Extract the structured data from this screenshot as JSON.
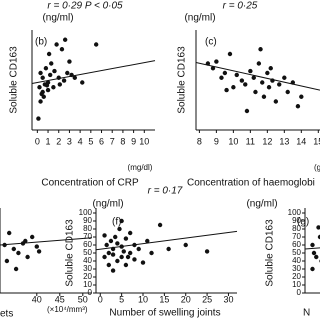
{
  "chart_data": [
    {
      "type": "scatter",
      "title": "r = 0·29 P < 0·05",
      "panel": "(b)",
      "y_unit": "(ng/ml)",
      "ylabel": "Soluble CD163",
      "xlabel": "Concentration of CRP",
      "x_unit": "(mg/dl)",
      "xlim": [
        -0.5,
        11
      ],
      "ylim": [
        0,
        100
      ],
      "xticks": [
        0,
        1,
        2,
        3,
        4,
        5,
        6,
        7,
        8,
        9,
        10
      ],
      "x": [
        0.2,
        0.3,
        0.5,
        0.5,
        0.7,
        0.8,
        1,
        1,
        1.2,
        1.3,
        1.5,
        1.6,
        1.8,
        2,
        2.1,
        2.3,
        2.5,
        2.8,
        3,
        3.2,
        3.5,
        0.1,
        0.4,
        0.9,
        1.1,
        2.6,
        4.2,
        5.5,
        0.3,
        0.6
      ],
      "y": [
        45,
        30,
        55,
        40,
        48,
        65,
        50,
        42,
        58,
        70,
        45,
        62,
        90,
        55,
        48,
        85,
        52,
        60,
        72,
        58,
        55,
        12,
        38,
        47,
        80,
        95,
        50,
        90,
        60,
        35
      ],
      "fit": {
        "x": [
          -0.5,
          11
        ],
        "y": [
          49,
          73
        ]
      },
      "color": "#111111"
    },
    {
      "type": "scatter",
      "title": "r = 0·25",
      "panel": "(c)",
      "y_unit": "(ng/ml)",
      "ylabel": "Soluble CD163",
      "xlabel": "Concentration of haemoglobi",
      "x_unit": "(g",
      "xlim": [
        7.8,
        15.1
      ],
      "ylim": [
        0,
        100
      ],
      "xticks": [
        8,
        9,
        10,
        11,
        12,
        13,
        14,
        15
      ],
      "x": [
        8.5,
        8.8,
        9,
        9.3,
        9.5,
        9.8,
        10,
        10.2,
        10.5,
        10.7,
        11,
        11.2,
        11.3,
        11.5,
        11.7,
        11.8,
        12,
        12.1,
        12.3,
        12.5,
        12.7,
        13,
        13.2,
        13.5,
        13.8,
        14,
        10.8,
        11.6,
        12.2,
        9.6
      ],
      "y": [
        70,
        65,
        72,
        55,
        60,
        80,
        45,
        58,
        52,
        48,
        62,
        55,
        40,
        70,
        50,
        35,
        60,
        45,
        52,
        30,
        48,
        55,
        40,
        50,
        25,
        35,
        20,
        85,
        65,
        42
      ],
      "fit": {
        "x": [
          7.8,
          15.1
        ],
        "y": [
          71,
          42
        ]
      },
      "color": "#111111"
    },
    {
      "type": "scatter",
      "xlabel": "ets",
      "x_unit": "(×10⁴/mm³)",
      "xlim": [
        32,
        52
      ],
      "ylim": [
        0,
        100
      ],
      "xticks": [
        40,
        45,
        50
      ],
      "x": [
        33,
        34,
        35,
        36,
        37,
        38,
        39,
        40,
        33.5,
        35.5,
        37.5,
        40.5
      ],
      "y": [
        60,
        75,
        55,
        50,
        62,
        45,
        70,
        58,
        40,
        30,
        65,
        52
      ],
      "fit": {
        "x": [
          32,
          52
        ],
        "y": [
          60,
          69
        ]
      },
      "color": "#111111"
    },
    {
      "type": "scatter",
      "title": "r = 0·17",
      "panel": "(f)",
      "y_unit": "(ng/ml)",
      "ylabel": "Soluble CD163",
      "xlabel": "Number of swelling joints",
      "xlim": [
        -1,
        32
      ],
      "ylim": [
        0,
        100
      ],
      "xticks": [
        0,
        5,
        10,
        15,
        20,
        25,
        30
      ],
      "yticks": [
        0,
        10,
        20,
        30,
        40,
        50,
        60,
        70,
        80,
        90,
        100
      ],
      "x": [
        1,
        1.5,
        2,
        2,
        2.5,
        3,
        3,
        3.5,
        4,
        4,
        4.5,
        5,
        5,
        5.5,
        6,
        6,
        7,
        7,
        8,
        8,
        9,
        10,
        11,
        12,
        14,
        16,
        20,
        25,
        3,
        5,
        6.5,
        1
      ],
      "y": [
        45,
        60,
        50,
        35,
        65,
        48,
        55,
        70,
        40,
        62,
        80,
        45,
        58,
        52,
        35,
        68,
        50,
        75,
        42,
        60,
        55,
        38,
        65,
        50,
        85,
        55,
        60,
        52,
        28,
        90,
        45,
        72
      ],
      "fit": {
        "x": [
          -1,
          32
        ],
        "y": [
          54,
          77
        ]
      },
      "color": "#111111"
    },
    {
      "type": "scatter",
      "panel": "(g)",
      "y_unit": "(ng/ml)",
      "ylabel": "Soluble CD163",
      "xlabel": "N",
      "xlim": [
        0,
        10
      ],
      "ylim": [
        0,
        100
      ],
      "yticks": [
        0,
        10,
        20,
        30,
        40,
        50,
        60,
        70,
        80,
        90,
        100
      ],
      "x": [
        1,
        1.5,
        2,
        1,
        2.5,
        1.8,
        1.2,
        2.2
      ],
      "y": [
        60,
        45,
        70,
        30,
        55,
        82,
        50,
        40
      ],
      "fit": {
        "x": [
          0,
          10
        ],
        "y": [
          55,
          62
        ]
      },
      "color": "#111111"
    }
  ]
}
